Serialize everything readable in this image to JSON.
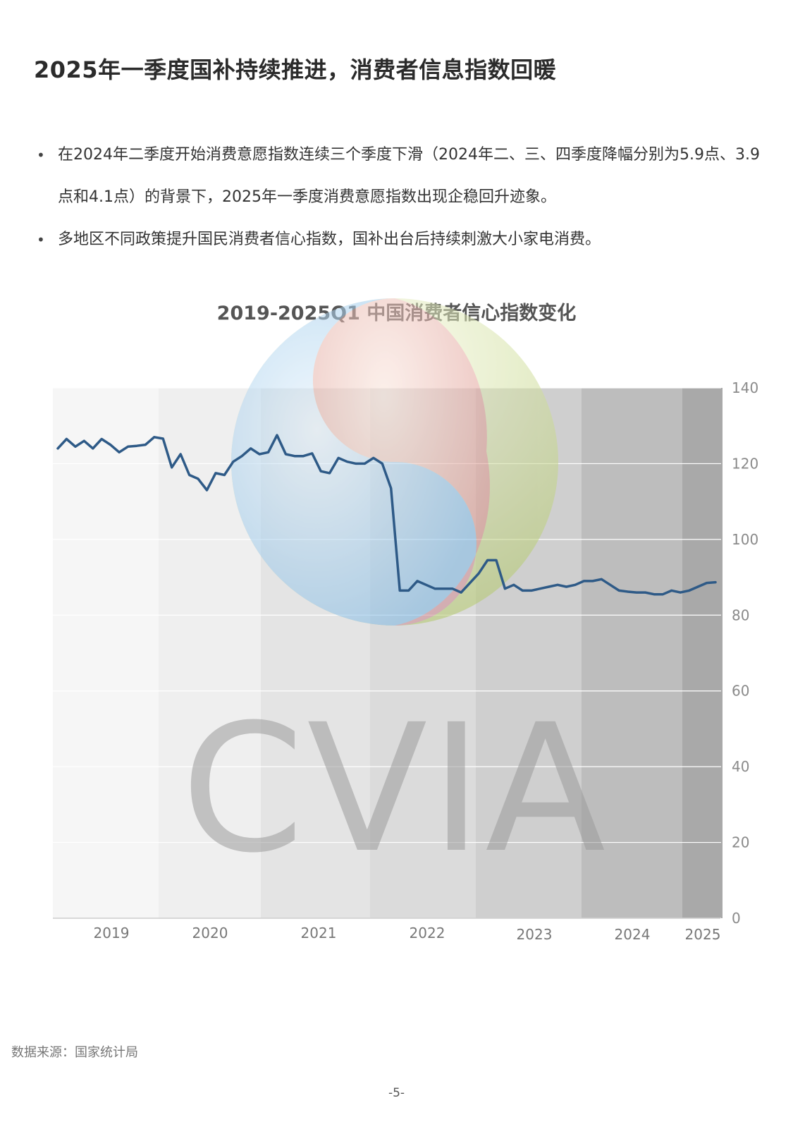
{
  "header": {
    "title": "2025年一季度国补持续推进，消费者信息指数回暖"
  },
  "bullets": [
    "在2024年二季度开始消费意愿指数连续三个季度下滑（2024年二、三、四季度降幅分别为5.9点、3.9点和4.1点）的背景下，2025年一季度消费意愿指数出现企稳回升迹象。",
    "多地区不同政策提升国民消费者信心指数，国补出台后持续刺激大小家电消费。"
  ],
  "chart_data": {
    "type": "line",
    "title": "2019-2025Q1 中国消费者信心指数变化",
    "ylim": [
      0,
      140
    ],
    "yticks": [
      0,
      20,
      40,
      60,
      80,
      100,
      120,
      140
    ],
    "y_axis_position": "right",
    "grid": true,
    "x_tick_labels": [
      "2019",
      "2020",
      "2021",
      "2022",
      "2023",
      "2024",
      "2025"
    ],
    "series": [
      {
        "color": "#2e5a87",
        "values": [
          124,
          126.5,
          124.5,
          126,
          124,
          126.5,
          125,
          123,
          124.5,
          124.7,
          125,
          127,
          126.6,
          119,
          122.5,
          117,
          116,
          113,
          117.5,
          117,
          120.5,
          122,
          124,
          122.5,
          123,
          127.5,
          122.5,
          122,
          122,
          122.7,
          118,
          117.5,
          121.5,
          120.5,
          120,
          120,
          121.5,
          120,
          113.5,
          86.5,
          86.5,
          89,
          88,
          87,
          87,
          87,
          86,
          88.5,
          91,
          94.5,
          94.5,
          87,
          88,
          86.5,
          86.5,
          87,
          87.5,
          88,
          87.5,
          88,
          89,
          89,
          89.5,
          88,
          86.5,
          86.2,
          86,
          86,
          85.5,
          85.5,
          86.5,
          86,
          86.5,
          87.5,
          88.5,
          88.7
        ]
      }
    ]
  },
  "watermark": {
    "text": "CVIA"
  },
  "footer": {
    "source": "数据来源：国家统计局",
    "page": "-5-"
  }
}
